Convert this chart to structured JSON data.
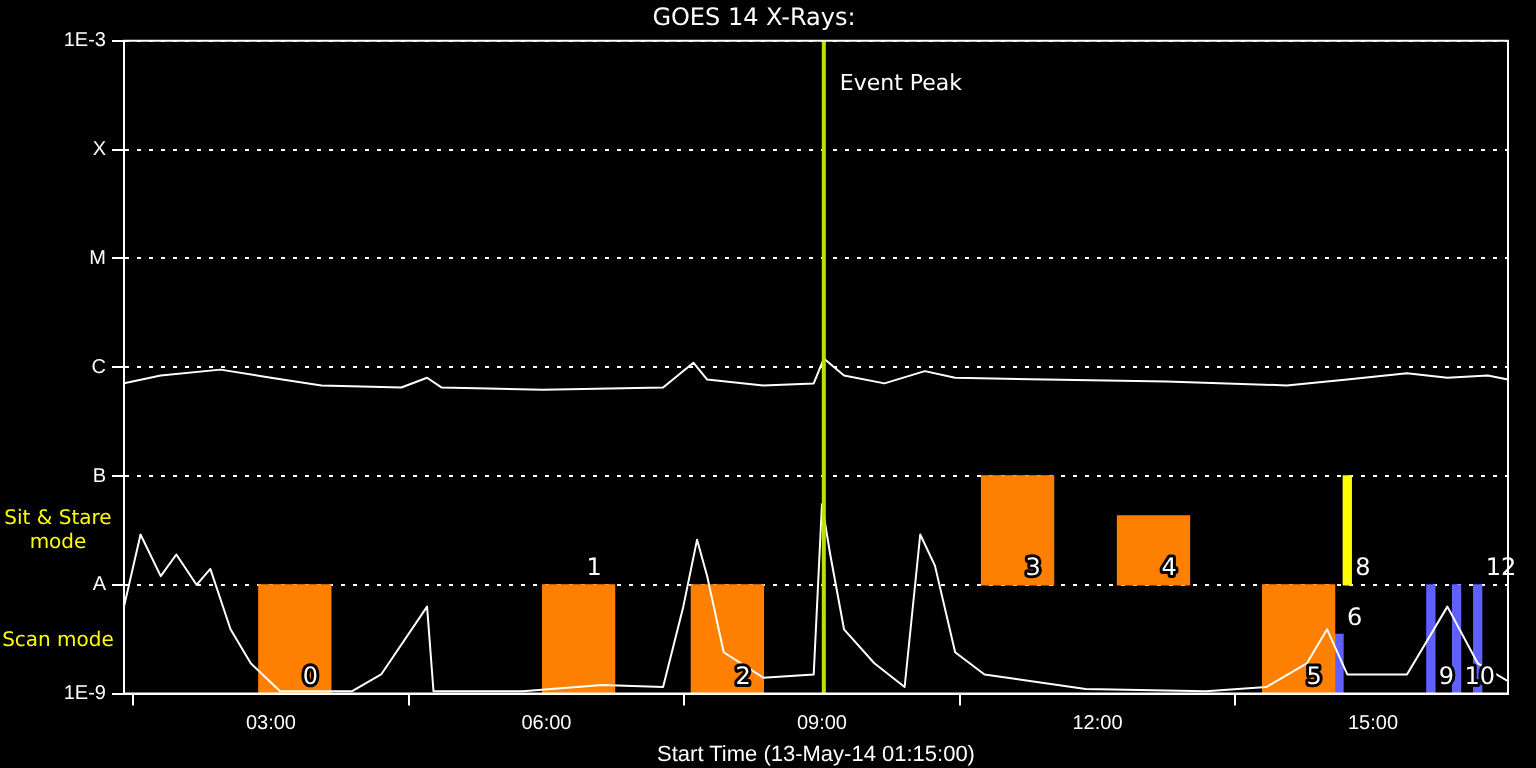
{
  "chart_data": {
    "type": "line",
    "title": "GOES 14 X-Rays:",
    "xlabel": "Start Time (13-May-14 01:15:00)",
    "log": "y",
    "grid": "y",
    "legend": false,
    "marker": "none",
    "line_style": "solid",
    "xlim": [
      1.4,
      16.47
    ],
    "xticks": [
      {
        "value": 3,
        "label": "03:00"
      },
      {
        "value": 6,
        "label": "06:00"
      },
      {
        "value": 9,
        "label": "09:00"
      },
      {
        "value": 12,
        "label": "12:00"
      },
      {
        "value": 15,
        "label": "15:00"
      }
    ],
    "ylim": [
      1e-09,
      0.001
    ],
    "yticks": [
      {
        "value": 1e-09,
        "label": "1E-9"
      },
      {
        "value": 1e-08,
        "label": "A"
      },
      {
        "value": 1e-07,
        "label": "B"
      },
      {
        "value": 1e-06,
        "label": "C"
      },
      {
        "value": 1e-05,
        "label": "M"
      },
      {
        "value": 0.0001,
        "label": "X"
      },
      {
        "value": 0.001,
        "label": "1E-3"
      }
    ],
    "series": [
      {
        "color": "#ffffff",
        "x": [
          1.4,
          1.8,
          2.45,
          3.0,
          3.55,
          4.42,
          4.7,
          4.86,
          5.96,
          7.27,
          7.6,
          7.75,
          8.36,
          8.91,
          9.02,
          9.24,
          9.68,
          10.12,
          10.45,
          11.43,
          12.75,
          14.06,
          14.72,
          15.37,
          15.81,
          16.25,
          16.47
        ],
        "values": [
          7.1e-07,
          8.4e-07,
          9.5e-07,
          8e-07,
          6.8e-07,
          6.5e-07,
          8e-07,
          6.5e-07,
          6.2e-07,
          6.5e-07,
          1.1e-06,
          7.7e-07,
          6.8e-07,
          7.1e-07,
          1.2e-06,
          8.4e-07,
          7.1e-07,
          9.2e-07,
          8e-07,
          7.7e-07,
          7.4e-07,
          6.8e-07,
          7.7e-07,
          8.8e-07,
          8e-07,
          8.4e-07,
          7.7e-07
        ]
      },
      {
        "color": "#ffffff",
        "x": [
          1.4,
          1.58,
          1.8,
          1.97,
          2.19,
          2.34,
          2.56,
          2.78,
          3.1,
          3.88,
          4.2,
          4.7,
          4.77,
          5.74,
          6.61,
          7.27,
          7.49,
          7.64,
          7.75,
          7.93,
          8.36,
          8.91,
          9.0,
          9.09,
          9.24,
          9.57,
          9.9,
          10.07,
          10.23,
          10.45,
          10.77,
          11.87,
          13.18,
          13.84,
          14.28,
          14.5,
          14.72,
          15.37,
          15.81,
          16.14,
          16.47
        ],
        "values": [
          6.3e-09,
          2.9e-08,
          1.2e-08,
          1.9e-08,
          1e-08,
          1.4e-08,
          3.9e-09,
          1.9e-09,
          1.05e-09,
          1.05e-09,
          1.5e-09,
          6.3e-09,
          1.05e-09,
          1.05e-09,
          1.2e-09,
          1.15e-09,
          6.3e-09,
          2.6e-08,
          1.2e-08,
          2.4e-09,
          1.4e-09,
          1.5e-09,
          5.5e-08,
          1.9e-08,
          3.9e-09,
          1.9e-09,
          1.15e-09,
          2.9e-08,
          1.5e-08,
          2.4e-09,
          1.5e-09,
          1.1e-09,
          1.05e-09,
          1.15e-09,
          1.9e-09,
          3.9e-09,
          1.5e-09,
          1.5e-09,
          6.3e-09,
          1.9e-09,
          1.3e-09
        ]
      },
      {
        "type": "bar",
        "color": "#ff8000",
        "x": [
          3.26,
          6.35,
          7.97,
          11.13,
          12.61,
          14.19
        ],
        "base": [
          1e-09,
          1e-09,
          1e-09,
          1e-08,
          1e-08,
          1e-09
        ],
        "values": [
          9e-09,
          9e-09,
          9e-09,
          9e-08,
          3.3e-08,
          9e-09
        ]
      },
      {
        "type": "bar",
        "color": "#6060ff",
        "colors": [
          null,
          "#ffff00",
          null,
          null,
          null
        ],
        "x": [
          14.63,
          14.72,
          15.63,
          15.91,
          16.14
        ],
        "base": [
          1e-09,
          1e-08,
          1e-09,
          1e-09,
          1e-09
        ],
        "values": [
          2.5e-09,
          9e-08,
          9e-09,
          9e-09,
          9e-09
        ]
      }
    ],
    "ref_lines": [
      {
        "axis": "x",
        "value": 9.02,
        "label": "Event Peak",
        "color": "#c0e000"
      }
    ],
    "annotations": [
      "Sit & Stare mode",
      "Scan mode",
      {
        "text": "0",
        "x": 3.26,
        "y": 1e-09
      },
      {
        "text": "1",
        "x": 6.35,
        "y": 1e-08
      },
      {
        "text": "2",
        "x": 7.97,
        "y": 1e-09
      },
      {
        "text": "3",
        "x": 11.13,
        "y": 1e-08
      },
      {
        "text": "4",
        "x": 12.61,
        "y": 1e-08
      },
      {
        "text": "5",
        "x": 14.19,
        "y": 1e-09
      },
      {
        "text": "6",
        "x": 14.63,
        "y": 3.5e-09
      },
      {
        "text": "8",
        "x": 14.72,
        "y": 1e-08
      },
      {
        "text": "9",
        "x": 15.63,
        "y": 1e-09
      },
      {
        "text": "10",
        "x": 15.91,
        "y": 1e-09
      },
      {
        "text": "12",
        "x": 16.14,
        "y": 1e-08
      }
    ]
  }
}
